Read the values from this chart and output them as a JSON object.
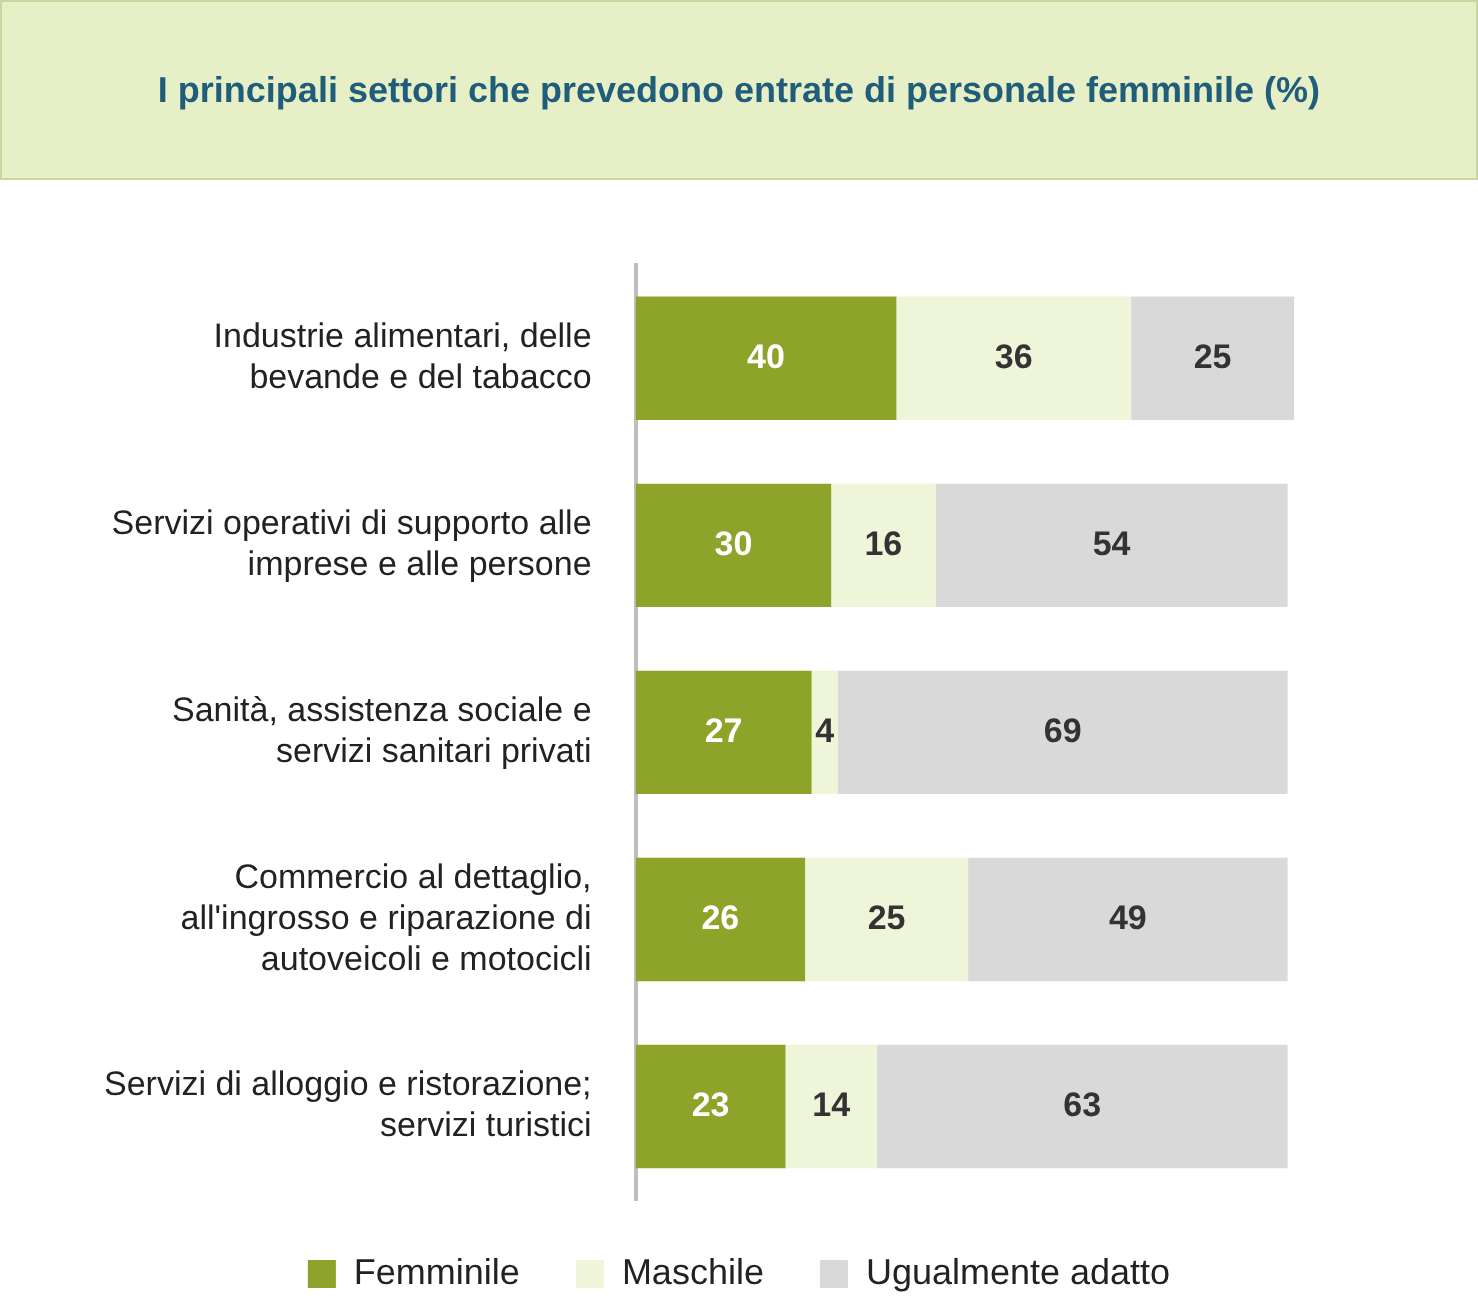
{
  "chart_data": {
    "type": "bar",
    "orientation": "horizontal",
    "stacked": true,
    "data_labels": true,
    "legend": "bottom",
    "title": "I principali settori che prevedono entrate di personale femminile (%)",
    "categories": [
      "Industrie alimentari, delle bevande e del tabacco",
      "Servizi operativi di supporto alle imprese e alle persone",
      "Sanità, assistenza sociale e servizi sanitari privati",
      "Commercio al dettaglio, all'ingrosso e riparazione di autoveicoli e motocicli",
      "Servizi di alloggio e ristorazione; servizi turistici"
    ],
    "series": [
      {
        "name": "Femminile",
        "color": "#8da32a",
        "values": [
          40,
          30,
          27,
          26,
          23
        ]
      },
      {
        "name": "Maschile",
        "color": "#eef5d8",
        "values": [
          36,
          16,
          4,
          25,
          14
        ]
      },
      {
        "name": "Ugualmente adatto",
        "color": "#d9d9d9",
        "values": [
          25,
          54,
          69,
          49,
          63
        ]
      }
    ]
  }
}
